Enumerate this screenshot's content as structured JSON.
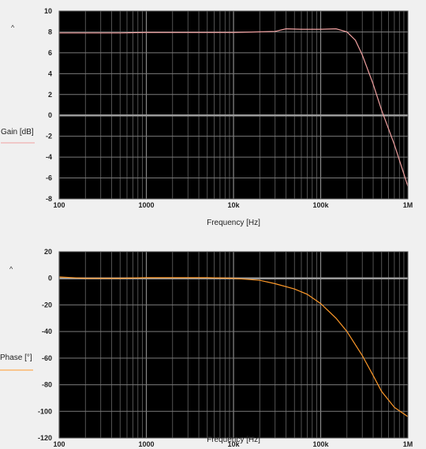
{
  "chart_data": [
    {
      "type": "line",
      "xlabel": "Frequency [Hz]",
      "ylabel": "Gain [dB]",
      "x_scale": "log",
      "xlim": [
        100,
        1000000
      ],
      "ylim": [
        -8,
        10
      ],
      "x_ticks": [
        100,
        1000,
        10000,
        100000,
        1000000
      ],
      "x_tick_labels": [
        "100",
        "1000",
        "10k",
        "100k",
        "1M"
      ],
      "y_ticks": [
        -8,
        -6,
        -4,
        -2,
        0,
        2,
        4,
        6,
        8,
        10
      ],
      "y_tick_labels": [
        "-8",
        "-6",
        "-4",
        "-2",
        "0",
        "2",
        "4",
        "6",
        "8",
        "10"
      ],
      "grid": true,
      "axis_marker": "^",
      "series": [
        {
          "color": "#f0a0a0",
          "x": [
            100,
            200,
            500,
            1000,
            2000,
            5000,
            10000,
            20000,
            30000,
            40000,
            60000,
            100000,
            150000,
            200000,
            250000,
            300000,
            400000,
            500000,
            700000,
            1000000
          ],
          "y": [
            7.9,
            7.9,
            7.9,
            7.95,
            7.95,
            7.95,
            7.95,
            8.0,
            8.05,
            8.3,
            8.25,
            8.25,
            8.3,
            8.0,
            7.2,
            5.8,
            3.0,
            0.5,
            -2.8,
            -6.8
          ]
        }
      ]
    },
    {
      "type": "line",
      "xlabel": "Frequency [Hz]",
      "ylabel": "Phase [°]",
      "x_scale": "log",
      "xlim": [
        100,
        1000000
      ],
      "ylim": [
        -120,
        20
      ],
      "x_ticks": [
        100,
        1000,
        10000,
        100000,
        1000000
      ],
      "x_tick_labels": [
        "100",
        "1000",
        "10k",
        "100k",
        "1M"
      ],
      "y_ticks": [
        -120,
        -100,
        -80,
        -60,
        -40,
        -20,
        0,
        20
      ],
      "y_tick_labels": [
        "-120",
        "-100",
        "-80",
        "-60",
        "-40",
        "-20",
        "0",
        "20"
      ],
      "grid": true,
      "axis_marker": "^",
      "series": [
        {
          "color": "#ff9a2a",
          "x": [
            100,
            200,
            500,
            1000,
            2000,
            5000,
            10000,
            20000,
            30000,
            50000,
            70000,
            100000,
            150000,
            200000,
            300000,
            400000,
            500000,
            700000,
            1000000
          ],
          "y": [
            1,
            0,
            0,
            0.5,
            0.5,
            0.5,
            0,
            -1.5,
            -4,
            -8,
            -12,
            -19,
            -30,
            -40,
            -58,
            -73,
            -85,
            -97,
            -104
          ]
        }
      ]
    }
  ]
}
